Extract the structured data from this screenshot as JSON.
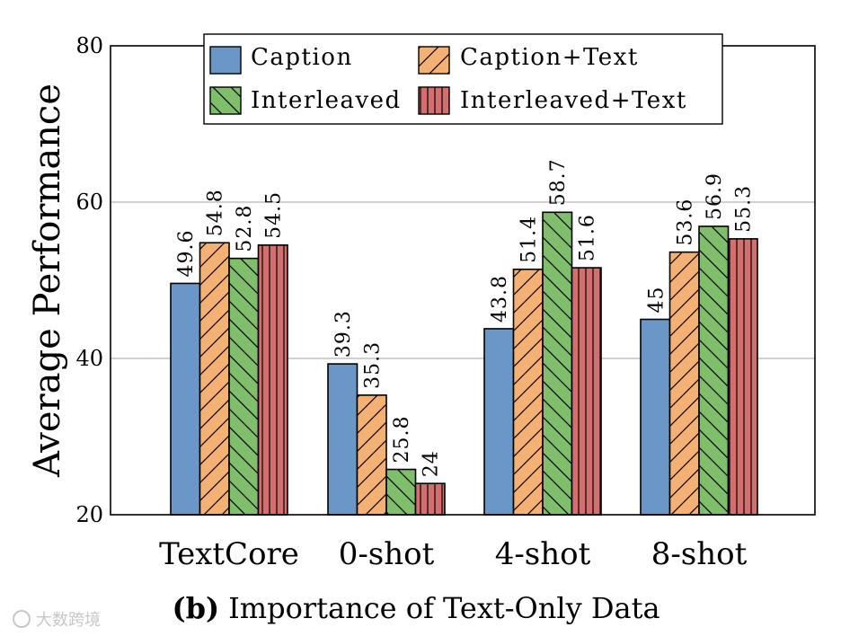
{
  "chart_data": {
    "type": "bar",
    "title": "(b) Importance of Text-Only Data",
    "title_prefix": "(b)",
    "title_text": "Importance of Text-Only Data",
    "xlabel": "",
    "ylabel": "Average Performance",
    "ylim": [
      20,
      80
    ],
    "yticks": [
      20,
      40,
      60,
      80
    ],
    "grid": true,
    "legend_position": "top",
    "categories": [
      "TextCore",
      "0-shot",
      "4-shot",
      "8-shot"
    ],
    "series": [
      {
        "name": "Caption",
        "values": [
          49.6,
          39.3,
          43.8,
          45
        ],
        "labels": [
          "49.6",
          "39.3",
          "43.8",
          "45"
        ],
        "color": "#6b97c7",
        "hatch": "none"
      },
      {
        "name": "Caption+Text",
        "values": [
          54.8,
          35.3,
          51.4,
          53.6
        ],
        "labels": [
          "54.8",
          "35.3",
          "51.4",
          "53.6"
        ],
        "color": "#f4b173",
        "hatch": "forward"
      },
      {
        "name": "Interleaved",
        "values": [
          52.8,
          25.8,
          58.7,
          56.9
        ],
        "labels": [
          "52.8",
          "25.8",
          "58.7",
          "56.9"
        ],
        "color": "#7fbf6a",
        "hatch": "backward"
      },
      {
        "name": "Interleaved+Text",
        "values": [
          54.5,
          24,
          51.6,
          55.3
        ],
        "labels": [
          "54.5",
          "24",
          "51.6",
          "55.3"
        ],
        "color": "#d46f6f",
        "hatch": "vertical"
      }
    ]
  },
  "watermark": {
    "text": "大数跨境"
  }
}
